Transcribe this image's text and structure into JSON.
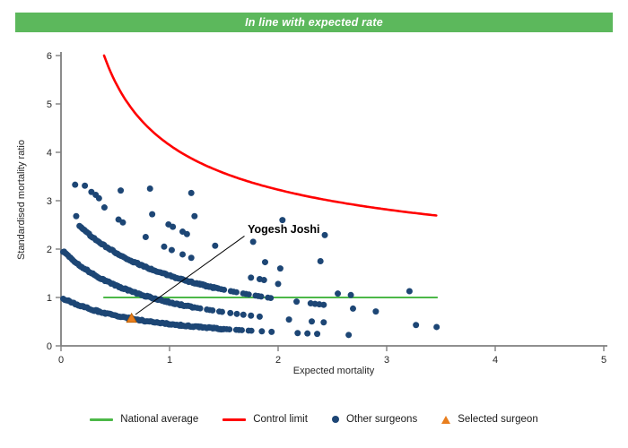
{
  "banner": {
    "text": "In line with expected rate",
    "bg_color": "#5cb85c",
    "text_color": "#ffffff"
  },
  "chart_data": {
    "type": "scatter",
    "subtype": "funnel-plot",
    "xlabel": "Expected mortality",
    "ylabel": "Standardised mortality ratio",
    "xlim": [
      0,
      5
    ],
    "ylim": [
      0,
      6
    ],
    "xticks": [
      0,
      1,
      2,
      3,
      4,
      5
    ],
    "yticks": [
      0,
      1,
      2,
      3,
      4,
      5,
      6
    ],
    "grid": false,
    "axis_color": "#7f7f7f",
    "tick_label_color": "#262626",
    "national_average": {
      "label": "National average",
      "y": 1,
      "x_start": 0.39,
      "x_end": 3.47,
      "color": "#4cb848"
    },
    "control_limit": {
      "label": "Control limit",
      "formula": "y = offset + coef / sqrt(x)",
      "offset": 1,
      "coef": 3.15,
      "x_start": 0.397,
      "x_end": 3.47,
      "y_max": 6,
      "color": "#ff0000"
    },
    "other_surgeons": {
      "label": "Other surgeons",
      "color": "#1d4675",
      "bands_formula": "y = n / (1+x)^p",
      "bands": [
        {
          "n": 1.0,
          "p": 1.15,
          "solid": [
            0.02,
            1.5
          ],
          "dotted": [
            1.5,
            1.78
          ],
          "tail": [
            1.85,
            1.94,
            2.18,
            2.27,
            2.36,
            2.65
          ]
        },
        {
          "n": 2.0,
          "p": 1.15,
          "solid": [
            0.02,
            1.23
          ],
          "dotted": [
            1.23,
            1.5
          ],
          "tail": [
            1.56,
            1.62,
            1.68,
            1.75,
            1.83,
            2.1,
            2.31,
            2.42
          ]
        },
        {
          "n": 2.9,
          "p": 1.0,
          "solid": [
            0.17,
            1.45
          ],
          "dotted": [
            1.45,
            1.95
          ],
          "tail": [
            2.17,
            2.3,
            2.34,
            2.38,
            2.42
          ]
        }
      ],
      "arcs": [
        {
          "points": [
            [
              0.13,
              3.33
            ],
            [
              0.22,
              3.31
            ],
            [
              0.28,
              3.18
            ],
            [
              0.32,
              3.12
            ],
            [
              0.35,
              3.05
            ],
            [
              0.4,
              2.86
            ],
            [
              0.53,
              2.61
            ],
            [
              0.57,
              2.55
            ],
            [
              0.78,
              2.25
            ],
            [
              0.95,
              2.05
            ],
            [
              1.02,
              1.98
            ],
            [
              1.12,
              1.89
            ],
            [
              1.2,
              1.82
            ]
          ]
        },
        {
          "points": [
            [
              0.84,
              2.72
            ],
            [
              0.99,
              2.51
            ],
            [
              1.03,
              2.46
            ],
            [
              1.12,
              2.36
            ],
            [
              1.16,
              2.31
            ],
            [
              1.42,
              2.07
            ]
          ]
        }
      ],
      "points": [
        [
          0.14,
          2.68
        ],
        [
          0.55,
          3.21
        ],
        [
          0.82,
          3.25
        ],
        [
          1.2,
          3.16
        ],
        [
          1.23,
          2.68
        ],
        [
          2.04,
          2.6
        ],
        [
          2.43,
          2.29
        ],
        [
          1.77,
          2.15
        ],
        [
          1.88,
          1.73
        ],
        [
          2.39,
          1.75
        ],
        [
          2.02,
          1.6
        ],
        [
          1.75,
          1.41
        ],
        [
          1.83,
          1.38
        ],
        [
          1.87,
          1.36
        ],
        [
          2.0,
          1.28
        ],
        [
          2.55,
          1.08
        ],
        [
          2.67,
          1.05
        ],
        [
          3.21,
          1.13
        ],
        [
          2.69,
          0.77
        ],
        [
          2.9,
          0.71
        ],
        [
          3.27,
          0.43
        ],
        [
          3.46,
          0.39
        ]
      ]
    },
    "selected_surgeon": {
      "label": "Selected surgeon",
      "name": "Yogesh Joshi",
      "x": 0.65,
      "y": 0.57,
      "color": "#e87e1e"
    },
    "annotation": {
      "text": "Yogesh Joshi",
      "text_at": [
        1.72,
        2.33
      ],
      "leader_from": [
        1.69,
        2.27
      ],
      "leader_to": [
        0.686,
        0.648
      ]
    }
  },
  "legend": {
    "items": [
      {
        "label": "National average",
        "type": "line",
        "color": "#4cb848"
      },
      {
        "label": "Control limit",
        "type": "line",
        "color": "#ff0000"
      },
      {
        "label": "Other surgeons",
        "type": "dot",
        "color": "#1d4675"
      },
      {
        "label": "Selected surgeon",
        "type": "triangle",
        "color": "#e87e1e"
      }
    ]
  }
}
